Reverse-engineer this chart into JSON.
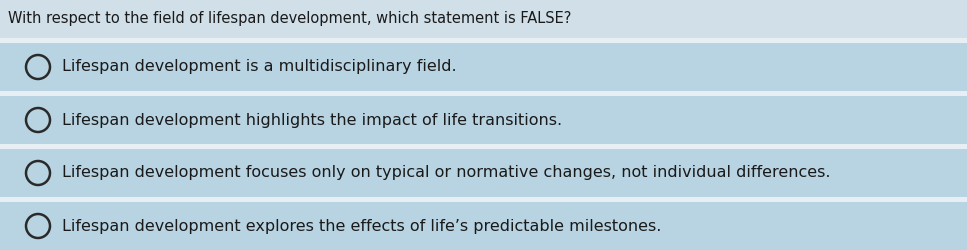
{
  "question": "With respect to the field of lifespan development, which statement is FALSE?",
  "options": [
    "Lifespan development is a multidisciplinary field.",
    "Lifespan development highlights the impact of life transitions.",
    "Lifespan development focuses only on typical or normative changes, not individual differences.",
    "Lifespan development explores the effects of life’s predictable milestones."
  ],
  "bg_color": "#d0dfe8",
  "option_bg_color": "#b8d4e2",
  "separator_color": "#e8eff4",
  "question_color": "#1a1a1a",
  "option_text_color": "#1a1a1a",
  "question_fontsize": 10.5,
  "option_fontsize": 11.5,
  "circle_color": "#2a2a2a",
  "circle_linewidth": 1.8,
  "fig_width": 9.67,
  "fig_height": 2.5,
  "dpi": 100
}
